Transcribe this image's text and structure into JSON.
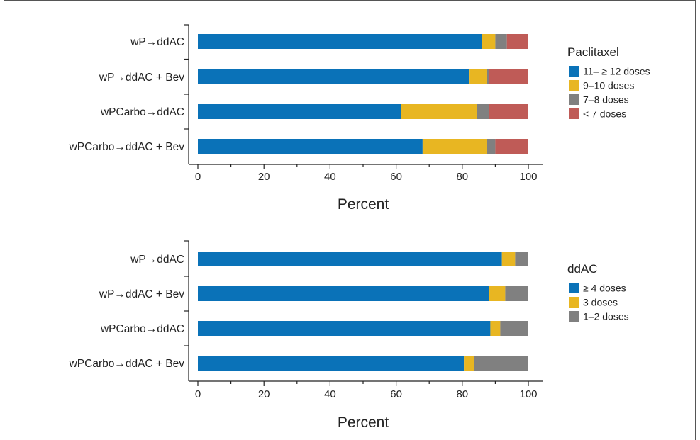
{
  "chart_data": [
    {
      "type": "bar",
      "orientation": "horizontal",
      "stacked": true,
      "categories": [
        "wP→ddAC",
        "wP→ddAC + Bev",
        "wPCarbo→ddAC",
        "wPCarbo→ddAC + Bev"
      ],
      "series": [
        {
          "name": "11– ≥ 12 doses",
          "color": "#0a72b8",
          "values": [
            86,
            82,
            61.5,
            68
          ]
        },
        {
          "name": "9–10 doses",
          "color": "#e8b622",
          "values": [
            4,
            5.5,
            23,
            19.5
          ]
        },
        {
          "name": "7–8 doses",
          "color": "#808080",
          "values": [
            3.5,
            0.5,
            3.5,
            2.5
          ]
        },
        {
          "name": "< 7 doses",
          "color": "#bf5b57",
          "values": [
            6.5,
            12,
            12,
            10
          ]
        }
      ],
      "xlabel": "Percent",
      "xlim": [
        0,
        100
      ],
      "xticks": [
        "0",
        "20",
        "40",
        "60",
        "80",
        "100"
      ],
      "legend_title": "Paclitaxel",
      "legend_position": "right"
    },
    {
      "type": "bar",
      "orientation": "horizontal",
      "stacked": true,
      "categories": [
        "wP→ddAC",
        "wP→ddAC + Bev",
        "wPCarbo→ddAC",
        "wPCarbo→ddAC + Bev"
      ],
      "series": [
        {
          "name": "≥ 4 doses",
          "color": "#0a72b8",
          "values": [
            92,
            88,
            88.5,
            80.5
          ]
        },
        {
          "name": "3 doses",
          "color": "#e8b622",
          "values": [
            4,
            5,
            3,
            3
          ]
        },
        {
          "name": "1–2 doses",
          "color": "#808080",
          "values": [
            4,
            7,
            8.5,
            16.5
          ]
        }
      ],
      "xlabel": "Percent",
      "xlim": [
        0,
        100
      ],
      "xticks": [
        "0",
        "20",
        "40",
        "60",
        "80",
        "100"
      ],
      "legend_title": "ddAC",
      "legend_position": "right"
    }
  ]
}
